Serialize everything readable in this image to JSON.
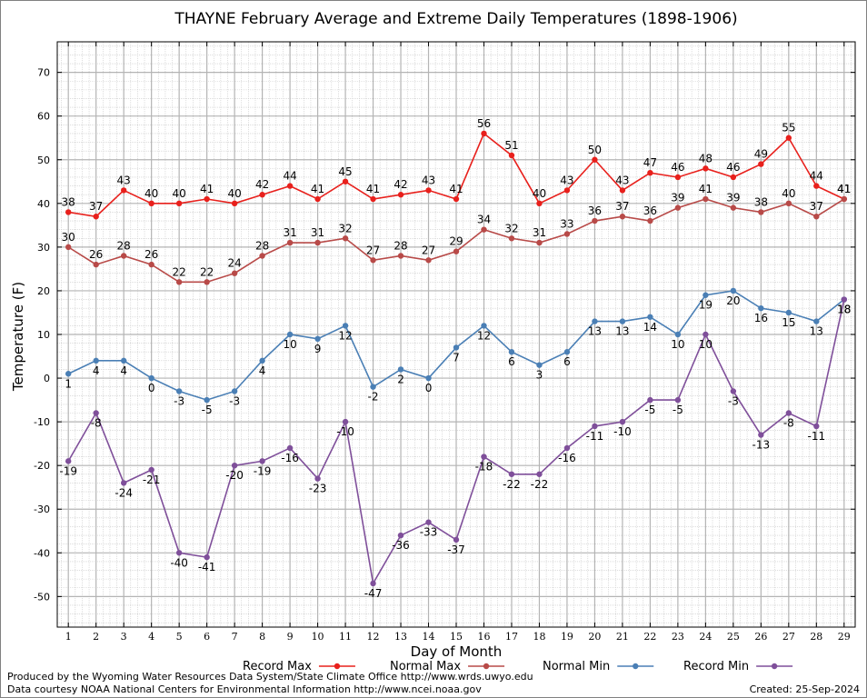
{
  "chart_data": {
    "type": "line",
    "title": "THAYNE February Average and Extreme Daily Temperatures (1898-1906)",
    "xlabel": "Day of Month",
    "ylabel": "Temperature (F)",
    "x": [
      1,
      2,
      3,
      4,
      5,
      6,
      7,
      8,
      9,
      10,
      11,
      12,
      13,
      14,
      15,
      16,
      17,
      18,
      19,
      20,
      21,
      22,
      23,
      24,
      25,
      26,
      27,
      28,
      29
    ],
    "xlim": [
      0.6,
      29.4
    ],
    "ylim": [
      -57,
      77
    ],
    "yticks": [
      -50,
      -40,
      -30,
      -20,
      -10,
      0,
      10,
      20,
      30,
      40,
      50,
      60,
      70
    ],
    "grid": true,
    "legend_position": "bottom",
    "series": [
      {
        "name": "Record Max",
        "color": "#e8201c",
        "label_pos": "above",
        "values": [
          38,
          37,
          43,
          40,
          40,
          41,
          40,
          42,
          44,
          41,
          45,
          41,
          42,
          43,
          41,
          56,
          51,
          40,
          43,
          50,
          43,
          47,
          46,
          48,
          46,
          49,
          55,
          44,
          41
        ]
      },
      {
        "name": "Normal Max",
        "color": "#b84a48",
        "label_pos": "above",
        "values": [
          30,
          26,
          28,
          26,
          22,
          22,
          24,
          28,
          31,
          31,
          32,
          27,
          28,
          27,
          29,
          34,
          32,
          31,
          33,
          36,
          37,
          36,
          39,
          41,
          39,
          38,
          40,
          37,
          41
        ]
      },
      {
        "name": "Normal Min",
        "color": "#4a7fb5",
        "label_pos": "below",
        "values": [
          1,
          4,
          4,
          0,
          -3,
          -5,
          -3,
          4,
          10,
          9,
          12,
          -2,
          2,
          0,
          7,
          12,
          6,
          3,
          6,
          13,
          13,
          14,
          10,
          19,
          20,
          16,
          15,
          13,
          18
        ]
      },
      {
        "name": "Record Min",
        "color": "#7f4f9a",
        "label_pos": "below",
        "values": [
          -19,
          -8,
          -24,
          -21,
          -40,
          -41,
          -20,
          -19,
          -16,
          -23,
          -10,
          -47,
          -36,
          -33,
          -37,
          -18,
          -22,
          -22,
          -16,
          -11,
          -10,
          -5,
          -5,
          10,
          -3,
          -13,
          -8,
          -11,
          18
        ]
      }
    ]
  },
  "footer": {
    "line1": "Produced by the Wyoming Water Resources Data System/State Climate Office http://www.wrds.uwyo.edu",
    "line2": "Data courtesy NOAA National Centers for Environmental Information http://www.ncei.noaa.gov",
    "created": "Created:  25-Sep-2024"
  }
}
